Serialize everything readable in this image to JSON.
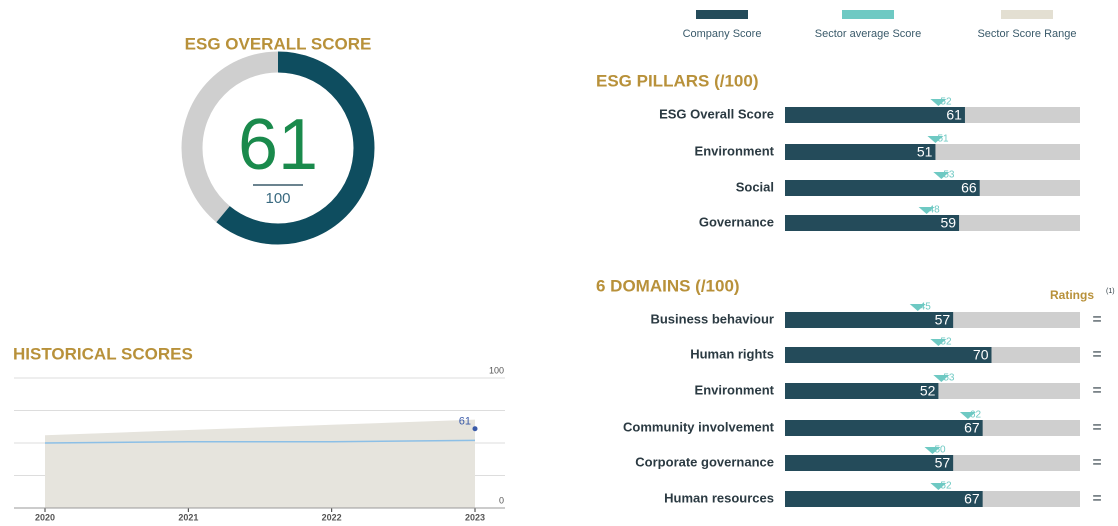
{
  "chart_data": [
    {
      "type": "donut",
      "title": "ESG OVERALL SCORE",
      "value": 61,
      "max": 100,
      "color": "#0e4d5f",
      "track_color": "#cfcfcf",
      "value_color": "#1a8a4c"
    },
    {
      "type": "hbar",
      "title": "ESG PILLARS (/100)",
      "categories": [
        "ESG Overall Score",
        "Environment",
        "Social",
        "Governance"
      ],
      "xlim": [
        0,
        100
      ],
      "series": [
        {
          "name": "Company Score",
          "color": "#244b5a",
          "values": [
            61,
            51,
            66,
            59
          ]
        },
        {
          "name": "Sector average Score",
          "color": "#6ec9c3",
          "values": [
            52,
            51,
            53,
            48
          ]
        },
        {
          "name": "Sector Score Range",
          "color": "#e3dfd2"
        }
      ]
    },
    {
      "type": "hbar",
      "title": "6 DOMAINS (/100)",
      "categories": [
        "Business behaviour",
        "Human rights",
        "Environment",
        "Community involvement",
        "Corporate governance",
        "Human resources"
      ],
      "xlim": [
        0,
        100
      ],
      "series": [
        {
          "color": "#244b5a",
          "values": [
            57,
            70,
            52,
            67,
            57,
            67
          ]
        },
        {
          "color": "#6ec9c3",
          "values": [
            45,
            52,
            53,
            62,
            50,
            52
          ]
        }
      ],
      "ratings_title": "Ratings",
      "ratings_note": "(1)",
      "ratings": [
        "=",
        "=",
        "=",
        "=",
        "=",
        "="
      ]
    },
    {
      "type": "area",
      "title": "HISTORICAL SCORES",
      "x": [
        2020,
        2021,
        2022,
        2023
      ],
      "xticks": [
        2020,
        2021,
        2022,
        2023
      ],
      "ylim": [
        0,
        100
      ],
      "yticks": [
        0,
        100
      ],
      "series": [
        {
          "color": "#e6e4dd",
          "values": [
            56,
            60,
            64,
            68
          ]
        },
        {
          "color": "#8cbfe6",
          "values": [
            50,
            51,
            51,
            52
          ]
        },
        {
          "color": "#3a5aa8",
          "values": [
            null,
            null,
            null,
            61
          ]
        }
      ]
    }
  ]
}
